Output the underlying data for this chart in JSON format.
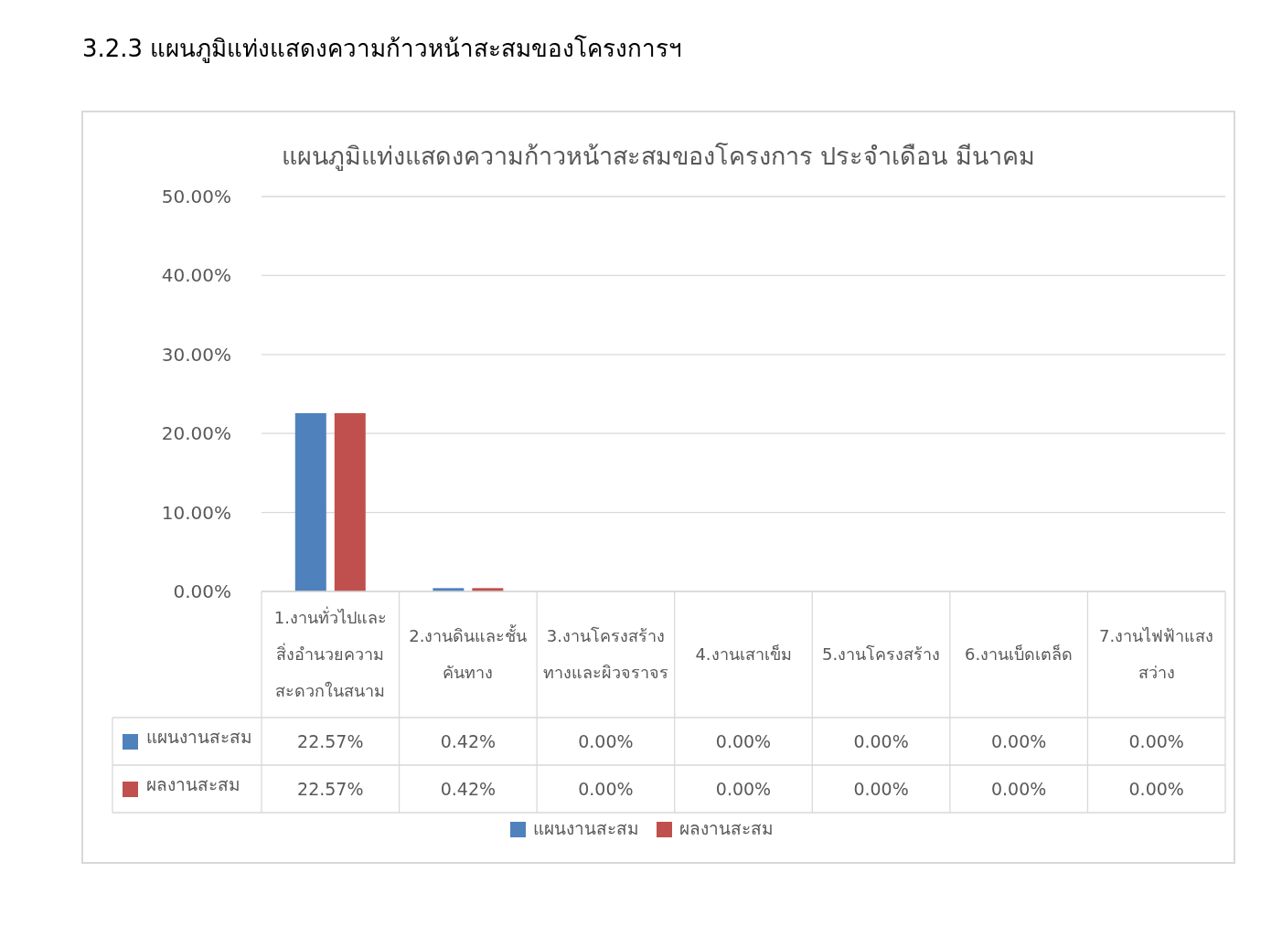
{
  "chart_data": {
    "type": "bar",
    "title": "3.2.3  แผนภูมิแท่งแสดงความก้าวหน้าสะสมของโครงการฯ",
    "subtitle": "แผนภูมิแท่งแสดงความก้าวหน้าสะสมของโครงการ ประจำเดือน มีนาคม",
    "categories": [
      "1.งานทั่วไปและสิ่งอำนวยความสะดวกในสนาม",
      "2.งานดินและชั้นคันทาง",
      "3.งานโครงสร้างทางและผิวจราจร",
      "4.งานเสาเข็ม",
      "5.งานโครงสร้าง",
      "6.งานเบ็ดเตล็ด",
      "7.งานไฟฟ้าแสงสว่าง"
    ],
    "series": [
      {
        "name": "แผนงานสะสม",
        "color": "#4f81bd",
        "values": [
          22.57,
          0.42,
          0,
          0,
          0,
          0,
          0
        ],
        "value_labels": [
          "22.57%",
          "0.42%",
          "0.00%",
          "0.00%",
          "0.00%",
          "0.00%",
          "0.00%"
        ]
      },
      {
        "name": "ผลงานสะสม",
        "color": "#c0504d",
        "values": [
          22.57,
          0.42,
          0,
          0,
          0,
          0,
          0
        ],
        "value_labels": [
          "22.57%",
          "0.42%",
          "0.00%",
          "0.00%",
          "0.00%",
          "0.00%",
          "0.00%"
        ]
      }
    ],
    "ylim": [
      0,
      50
    ],
    "yticks": [
      {
        "value": 0,
        "label": "0.00%"
      },
      {
        "value": 10,
        "label": "10.00%"
      },
      {
        "value": 20,
        "label": "20.00%"
      },
      {
        "value": 30,
        "label": "30.00%"
      },
      {
        "value": 40,
        "label": "40.00%"
      },
      {
        "value": 50,
        "label": "50.00%"
      }
    ],
    "grid": "y",
    "legend": "bottom"
  }
}
